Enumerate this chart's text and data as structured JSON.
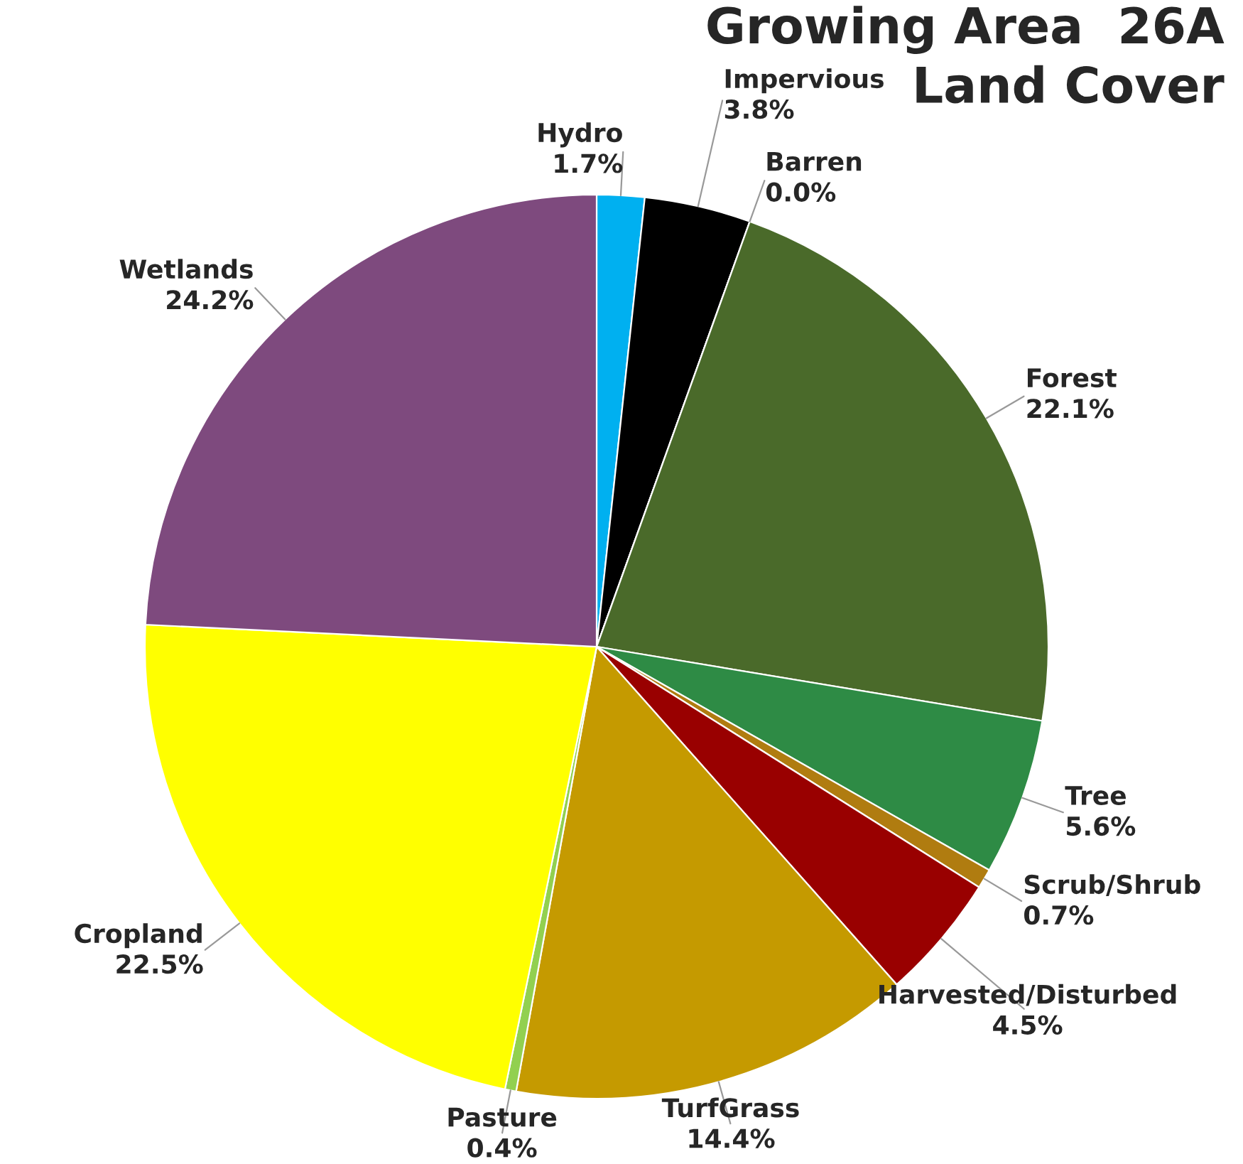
{
  "chart_data": {
    "type": "pie",
    "title": "Growing Area  26A\nLand Cover",
    "categories": [
      "Hydro",
      "Impervious",
      "Barren",
      "Forest",
      "Tree",
      "Scrub/Shrub",
      "Harvested/Disturbed",
      "TurfGrass",
      "Pasture",
      "Cropland",
      "Wetlands"
    ],
    "values": [
      1.7,
      3.8,
      0.0,
      22.1,
      5.6,
      0.7,
      4.5,
      14.4,
      0.4,
      22.5,
      24.2
    ],
    "colors": [
      "#00b0f0",
      "#000000",
      "#bfbfbf",
      "#4a6a2a",
      "#2e8b45",
      "#b07c10",
      "#990000",
      "#c59a00",
      "#92d050",
      "#ffff00",
      "#7e4a7e"
    ],
    "value_labels": [
      "1.7%",
      "3.8%",
      "0.0%",
      "22.1%",
      "5.6%",
      "0.7%",
      "4.5%",
      "14.4%",
      "0.4%",
      "22.5%",
      "24.2%"
    ],
    "legend": false
  }
}
